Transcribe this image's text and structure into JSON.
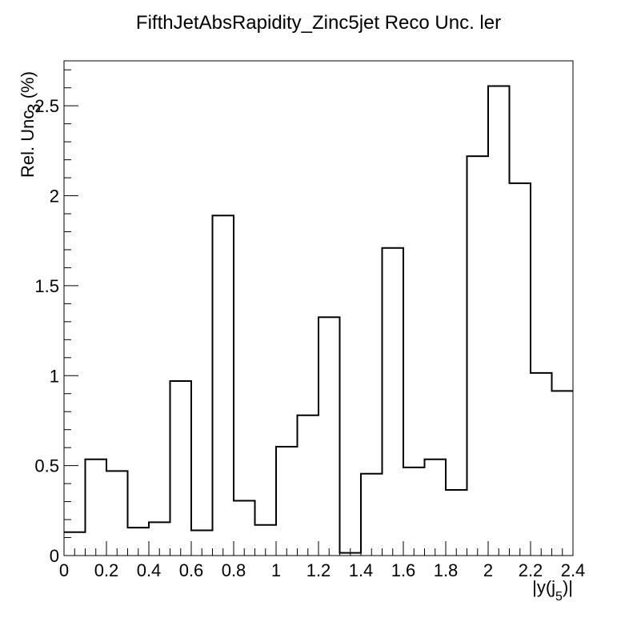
{
  "chart_data": {
    "type": "bar",
    "title": "FifthJetAbsRapidity_Zinc5jet Reco Unc. ler",
    "xlabel_main": "|y(j",
    "xlabel_sub": "5",
    "xlabel_end": ")|",
    "ylabel_main": "Rel. Unc",
    "ylabel_overlap": "3",
    "ylabel_end": " (%)",
    "xlim": [
      0,
      2.4
    ],
    "ylim": [
      0,
      2.75
    ],
    "bin_edges": [
      0,
      0.1,
      0.2,
      0.3,
      0.4,
      0.5,
      0.6,
      0.7,
      0.8,
      0.9,
      1.0,
      1.1,
      1.2,
      1.3,
      1.4,
      1.5,
      1.6,
      1.7,
      1.8,
      1.9,
      2.0,
      2.1,
      2.2,
      2.3,
      2.4
    ],
    "values": [
      0.13,
      0.535,
      0.47,
      0.155,
      0.185,
      0.97,
      0.14,
      1.89,
      0.305,
      0.17,
      0.605,
      0.78,
      1.325,
      0.015,
      0.455,
      1.71,
      0.49,
      0.535,
      0.365,
      2.22,
      2.61,
      2.07,
      1.015,
      0.915
    ],
    "x_ticks": [
      "0",
      "0.2",
      "0.4",
      "0.6",
      "0.8",
      "1",
      "1.2",
      "1.4",
      "1.6",
      "1.8",
      "2",
      "2.2",
      "2.4"
    ],
    "y_ticks": [
      "0",
      "0.5",
      "1",
      "1.5",
      "2",
      "2.5"
    ],
    "grid": false,
    "line_color": "#000000",
    "background": "#ffffff"
  }
}
